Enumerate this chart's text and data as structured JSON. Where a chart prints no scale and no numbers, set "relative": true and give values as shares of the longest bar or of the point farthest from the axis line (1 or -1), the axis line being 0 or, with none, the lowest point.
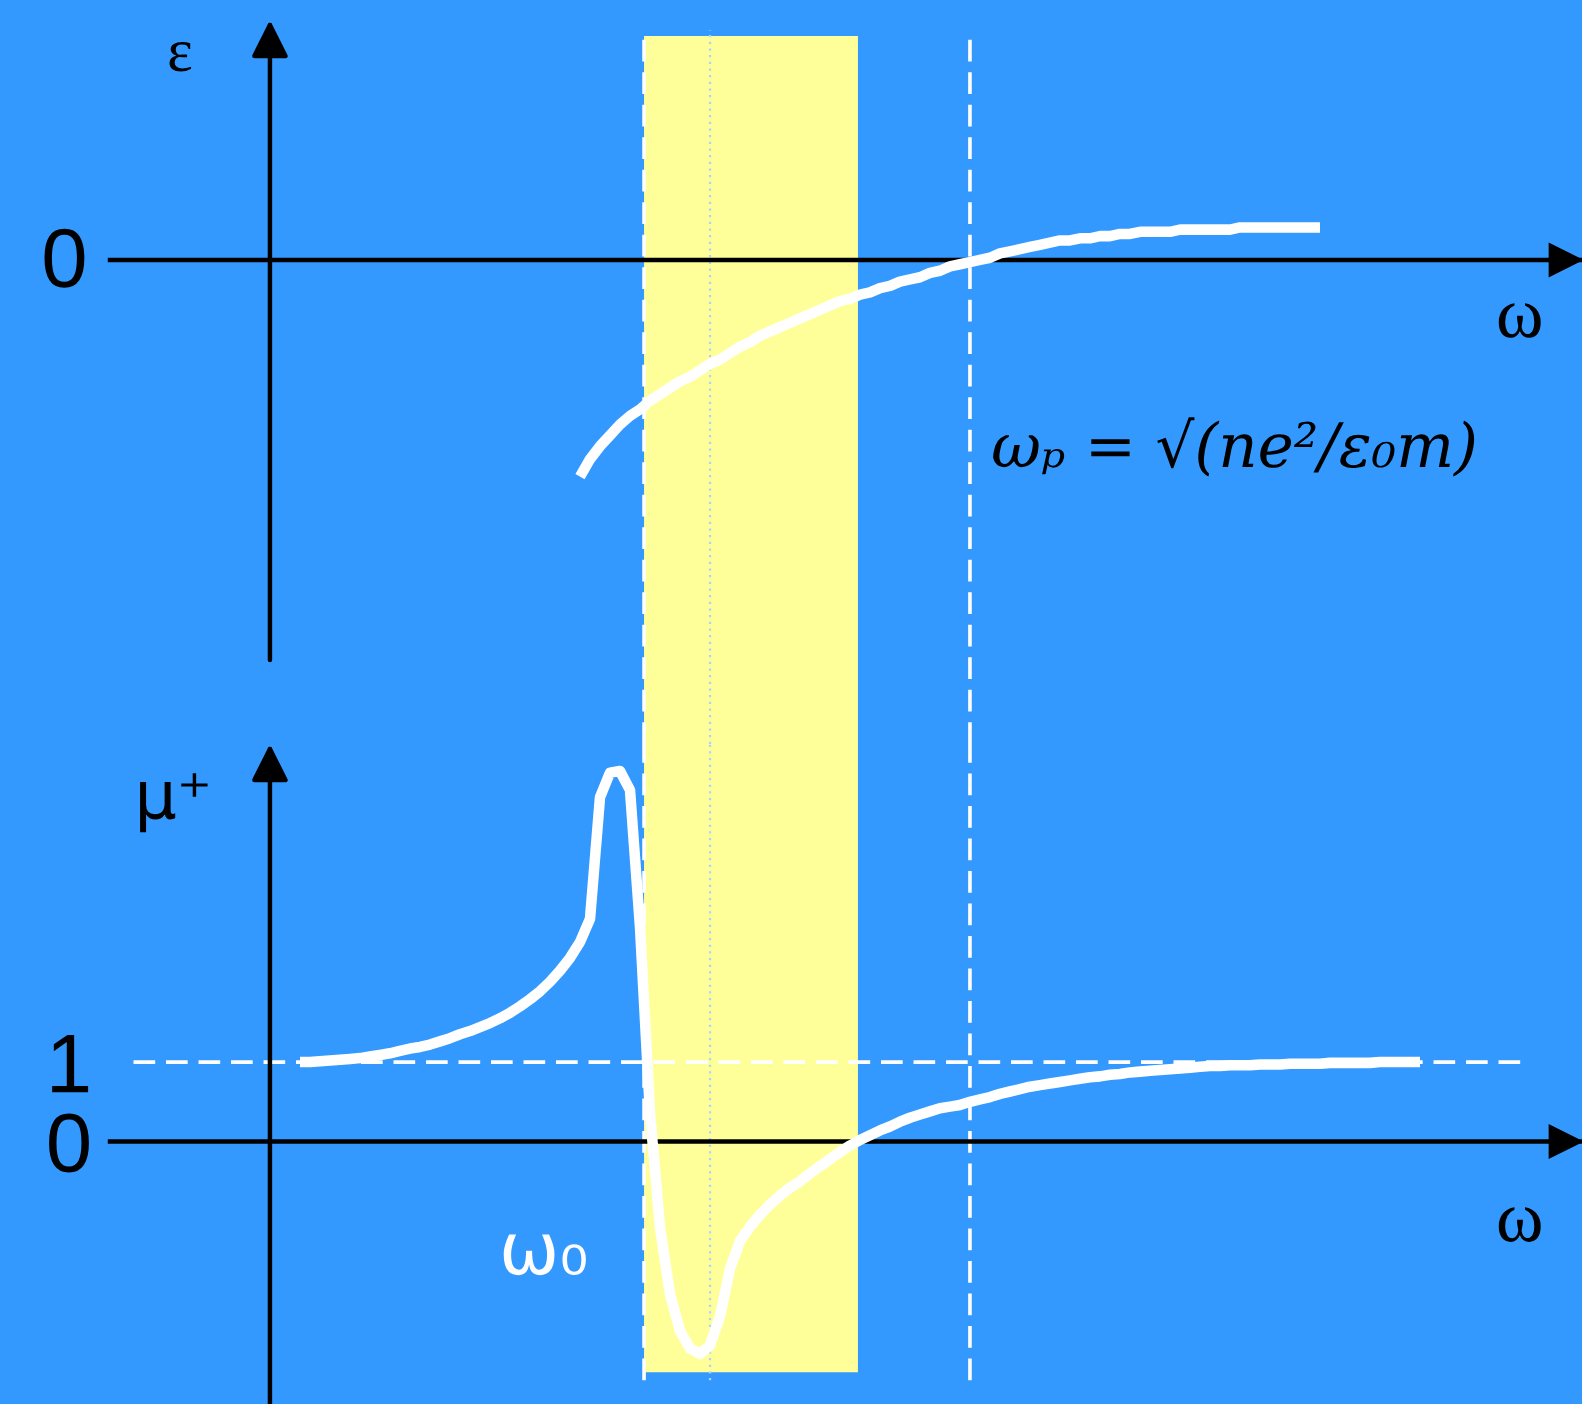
{
  "chart_data": [
    {
      "type": "line",
      "relative": true,
      "line_style": "solid",
      "ylabel": "ε",
      "xlabel": "ω",
      "tick_labels": false,
      "categories": [
        null,
        null,
        null,
        null,
        null,
        null,
        null,
        null,
        null,
        null,
        null,
        null,
        null,
        null,
        null,
        null,
        null,
        null,
        null,
        null,
        null,
        null,
        null,
        null,
        null,
        null,
        null,
        null,
        null,
        null,
        null,
        null,
        null,
        null,
        null,
        null,
        null,
        null,
        null,
        null,
        null,
        null,
        null,
        null,
        null,
        null,
        null,
        null,
        null,
        null,
        null,
        null,
        null,
        null,
        null,
        null,
        null,
        null,
        null,
        null,
        null,
        null,
        null,
        null,
        null,
        null,
        null,
        null,
        null,
        null,
        null,
        null,
        null,
        null,
        null,
        null,
        null,
        null,
        null,
        null,
        null,
        null,
        null,
        null,
        null,
        null,
        null,
        null,
        null,
        null,
        null,
        null,
        null,
        null,
        null,
        null,
        null,
        null,
        null,
        null,
        null,
        null,
        null,
        null,
        null,
        null,
        null,
        null,
        null,
        null,
        null,
        null,
        null,
        null,
        null,
        null,
        null,
        null,
        null,
        null,
        null,
        null,
        null,
        null,
        null,
        null,
        null,
        null,
        null,
        null,
        null,
        null,
        null,
        null,
        null,
        null,
        null,
        null,
        null,
        null,
        null,
        null,
        null,
        null,
        null,
        null,
        null,
        null
      ],
      "series": [
        {
          "color": "#ffffff",
          "values": [
            null,
            null,
            null,
            null,
            null,
            null,
            null,
            null,
            null,
            null,
            null,
            null,
            null,
            null,
            null,
            null,
            null,
            null,
            null,
            null,
            null,
            null,
            null,
            null,
            null,
            null,
            null,
            null,
            null,
            null,
            null,
            null,
            null,
            null,
            null,
            null,
            null,
            null,
            null,
            null,
            null,
            null,
            null,
            null,
            null,
            null,
            null,
            -1.0,
            -0.92,
            -0.86,
            -0.81,
            -0.76,
            -0.72,
            -0.69,
            -0.65,
            -0.62,
            -0.59,
            -0.56,
            -0.54,
            -0.51,
            -0.48,
            -0.46,
            -0.43,
            -0.4,
            -0.38,
            -0.35,
            -0.33,
            -0.31,
            -0.29,
            -0.27,
            -0.25,
            -0.23,
            -0.21,
            -0.19,
            -0.18,
            -0.16,
            -0.15,
            -0.13,
            -0.12,
            -0.1,
            -0.09,
            -0.08,
            -0.06,
            -0.05,
            -0.03,
            -0.02,
            -0.01,
            0.0,
            0.01,
            0.03,
            0.04,
            0.05,
            0.06,
            0.07,
            0.08,
            0.09,
            0.09,
            0.1,
            0.1,
            0.11,
            0.11,
            0.12,
            0.12,
            0.13,
            0.13,
            0.13,
            0.13,
            0.14,
            0.14,
            0.14,
            0.14,
            0.14,
            0.14,
            0.15,
            0.15,
            0.15,
            0.15,
            0.15,
            0.15,
            0.15,
            0.15,
            0.15,
            null,
            null,
            null,
            null,
            null,
            null,
            null,
            null,
            null,
            null,
            null,
            null,
            null,
            null,
            null,
            null,
            null,
            null,
            null,
            null,
            null,
            null,
            null,
            null,
            null,
            null
          ]
        }
      ],
      "annotations": [
        "ωₚ = √(ne²/ε₀m)",
        "0"
      ]
    },
    {
      "type": "line",
      "line_style": "solid",
      "ylabel": "μ⁺",
      "xlabel": "ω",
      "ylim": [
        -3.3,
        5.0
      ],
      "yticks": [
        0,
        1
      ],
      "tick_labels": "y",
      "categories": [
        null,
        null,
        null,
        null,
        null,
        null,
        null,
        null,
        null,
        null,
        null,
        null,
        null,
        null,
        null,
        null,
        null,
        null,
        null,
        null,
        null,
        null,
        null,
        null,
        null,
        null,
        null,
        null,
        null,
        null,
        null,
        null,
        null,
        null,
        null,
        null,
        null,
        null,
        null,
        null,
        null,
        null,
        null,
        null,
        null,
        null,
        null,
        null,
        null,
        null,
        null,
        null,
        null,
        null,
        null,
        null,
        null,
        null,
        null,
        null,
        null,
        null,
        null,
        null,
        null,
        null,
        null,
        null,
        null,
        null,
        null,
        null,
        null,
        null,
        null,
        null,
        null,
        null,
        null,
        null,
        null,
        null,
        null,
        null,
        null,
        null,
        null,
        null,
        null,
        null,
        null,
        null,
        null,
        null,
        null,
        null,
        null,
        null,
        null,
        null,
        null,
        null,
        null,
        null,
        null,
        null,
        null,
        null,
        null,
        null,
        null,
        null,
        null,
        null,
        null,
        null,
        null,
        null,
        null,
        null,
        null,
        null,
        null,
        null,
        null,
        null,
        null,
        null,
        null,
        null,
        null,
        null,
        null,
        null,
        null,
        null,
        null,
        null,
        null,
        null,
        null,
        null,
        null,
        null,
        null,
        null,
        null,
        null
      ],
      "series": [
        {
          "color": "#ffffff",
          "values": [
            null,
            null,
            null,
            null,
            null,
            null,
            null,
            null,
            null,
            null,
            null,
            null,
            null,
            null,
            null,
            null,
            null,
            null,
            null,
            1.0,
            1.0,
            1.01,
            1.02,
            1.03,
            1.04,
            1.05,
            1.07,
            1.09,
            1.11,
            1.14,
            1.17,
            1.19,
            1.22,
            1.26,
            1.3,
            1.35,
            1.39,
            1.44,
            1.49,
            1.55,
            1.62,
            1.7,
            1.79,
            1.89,
            2.01,
            2.15,
            2.31,
            2.51,
            2.8,
            4.33,
            4.64,
            4.66,
            4.42,
            2.7,
            0.36,
            -1.08,
            -1.92,
            -2.38,
            -2.6,
            -2.67,
            -2.56,
            -2.2,
            -1.6,
            -1.25,
            -1.07,
            -0.92,
            -0.79,
            -0.68,
            -0.58,
            -0.5,
            -0.4,
            -0.31,
            -0.22,
            -0.13,
            -0.05,
            0.02,
            0.08,
            0.14,
            0.19,
            0.25,
            0.3,
            0.34,
            0.38,
            0.42,
            0.44,
            0.46,
            0.5,
            0.53,
            0.56,
            0.6,
            0.63,
            0.66,
            0.69,
            0.71,
            0.73,
            0.75,
            0.77,
            0.79,
            0.81,
            0.82,
            0.84,
            0.85,
            0.87,
            0.88,
            0.89,
            0.9,
            0.91,
            0.92,
            0.93,
            0.94,
            0.95,
            0.95,
            0.96,
            0.96,
            0.96,
            0.97,
            0.97,
            0.97,
            0.98,
            0.98,
            0.98,
            0.98,
            0.99,
            0.99,
            0.99,
            0.99,
            0.99,
            1.0,
            1.0,
            1.0,
            1.0,
            1.0,
            null,
            null,
            null,
            null,
            null,
            null,
            null,
            null,
            null,
            null,
            null,
            null,
            null,
            null,
            null,
            null
          ]
        }
      ],
      "ref_lines": [
        {
          "axis": "y",
          "value": 1,
          "color": "#ffffff",
          "line_style": "dashed"
        }
      ],
      "annotations": [
        "ω₀"
      ]
    }
  ]
}
